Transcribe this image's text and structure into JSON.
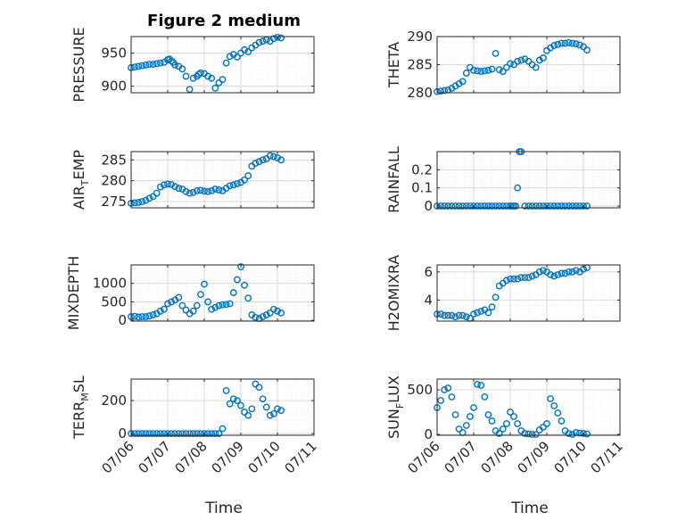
{
  "figure": {
    "title": "Figure 2 medium",
    "xlabel": "Time"
  },
  "colors": {
    "marker": "#0072BD",
    "axis": "#262626",
    "grid": "#d9d9d9",
    "minorgrid": "#ececec"
  },
  "chart_data": [
    {
      "type": "scatter",
      "ylabel": "PRESSURE",
      "ylabel_main": "PRESSURE",
      "ylabel_sub": "",
      "ylim": [
        890,
        975
      ],
      "yticks": [
        900,
        950
      ],
      "xlim": [
        0,
        5
      ],
      "xticks": [
        "07/06",
        "07/07",
        "07/08",
        "07/09",
        "07/10",
        "07/11"
      ],
      "x": [
        0.0,
        0.1,
        0.2,
        0.3,
        0.4,
        0.5,
        0.6,
        0.7,
        0.8,
        0.9,
        1.0,
        1.05,
        1.1,
        1.15,
        1.2,
        1.3,
        1.4,
        1.5,
        1.6,
        1.7,
        1.8,
        1.85,
        1.9,
        2.0,
        2.1,
        2.2,
        2.3,
        2.4,
        2.5,
        2.6,
        2.7,
        2.8,
        2.9,
        3.0,
        3.1,
        3.2,
        3.3,
        3.4,
        3.5,
        3.6,
        3.7,
        3.8,
        3.9,
        4.0,
        4.1
      ],
      "y": [
        928,
        929,
        930,
        931,
        932,
        933,
        933,
        934,
        935,
        936,
        940,
        941,
        938,
        936,
        932,
        930,
        926,
        915,
        895,
        912,
        915,
        918,
        920,
        919,
        915,
        912,
        897,
        905,
        910,
        935,
        945,
        948,
        944,
        950,
        955,
        952,
        958,
        962,
        966,
        968,
        970,
        968,
        972,
        974,
        973
      ]
    },
    {
      "type": "scatter",
      "ylabel": "THETA",
      "ylabel_main": "THETA",
      "ylabel_sub": "",
      "ylim": [
        280,
        290
      ],
      "yticks": [
        280,
        285,
        290
      ],
      "xlim": [
        0,
        5
      ],
      "xticks": [
        "07/06",
        "07/07",
        "07/08",
        "07/09",
        "07/10",
        "07/11"
      ],
      "x": [
        0.0,
        0.1,
        0.2,
        0.3,
        0.4,
        0.5,
        0.6,
        0.7,
        0.8,
        0.9,
        1.0,
        1.1,
        1.2,
        1.3,
        1.4,
        1.5,
        1.6,
        1.7,
        1.8,
        1.9,
        2.0,
        2.1,
        2.2,
        2.3,
        2.4,
        2.5,
        2.6,
        2.7,
        2.8,
        2.9,
        3.0,
        3.1,
        3.2,
        3.3,
        3.4,
        3.5,
        3.6,
        3.7,
        3.8,
        3.9,
        4.0,
        4.1
      ],
      "y": [
        280.2,
        280.3,
        280.4,
        280.5,
        280.8,
        281.2,
        281.6,
        282.0,
        283.5,
        284.5,
        284.0,
        283.9,
        283.8,
        283.9,
        284.0,
        284.2,
        287.0,
        284.1,
        283.8,
        284.5,
        285.2,
        285.0,
        285.6,
        285.8,
        286.0,
        285.6,
        285.0,
        284.5,
        285.8,
        286.2,
        287.5,
        288.0,
        288.4,
        288.6,
        288.8,
        288.8,
        288.9,
        288.8,
        288.7,
        288.5,
        288.2,
        287.6
      ]
    },
    {
      "type": "scatter",
      "ylabel": "AIR_TEMP",
      "ylabel_main": "AIR",
      "ylabel_sub": "T",
      "ylabel_rest": "EMP",
      "ylim": [
        273.5,
        287
      ],
      "yticks": [
        275,
        280,
        285
      ],
      "xlim": [
        0,
        5
      ],
      "xticks": [
        "07/06",
        "07/07",
        "07/08",
        "07/09",
        "07/10",
        "07/11"
      ],
      "x": [
        0.0,
        0.1,
        0.2,
        0.3,
        0.4,
        0.5,
        0.6,
        0.7,
        0.8,
        0.9,
        1.0,
        1.1,
        1.2,
        1.3,
        1.4,
        1.5,
        1.6,
        1.7,
        1.8,
        1.9,
        2.0,
        2.1,
        2.2,
        2.3,
        2.4,
        2.5,
        2.6,
        2.7,
        2.8,
        2.9,
        3.0,
        3.1,
        3.2,
        3.3,
        3.4,
        3.5,
        3.6,
        3.7,
        3.8,
        3.9,
        4.0,
        4.1
      ],
      "y": [
        274.6,
        274.7,
        274.8,
        275.0,
        275.3,
        275.8,
        276.2,
        277.0,
        278.5,
        279.0,
        279.2,
        279.1,
        278.6,
        278.2,
        278.0,
        277.4,
        277.0,
        277.2,
        277.6,
        277.7,
        277.5,
        277.4,
        277.6,
        278.0,
        277.8,
        277.6,
        278.2,
        278.8,
        279.0,
        279.3,
        279.6,
        280.2,
        281.2,
        283.5,
        284.2,
        284.6,
        285.0,
        285.3,
        286.0,
        285.8,
        285.5,
        285.0
      ]
    },
    {
      "type": "scatter",
      "ylabel": "RAINFALL",
      "ylabel_main": "RAINFALL",
      "ylabel_sub": "",
      "ylim": [
        -0.01,
        0.3
      ],
      "yticks": [
        0,
        0.1,
        0.2
      ],
      "xlim": [
        0,
        5
      ],
      "xticks": [
        "07/06",
        "07/07",
        "07/08",
        "07/09",
        "07/10",
        "07/11"
      ],
      "x": [
        0.0,
        0.1,
        0.2,
        0.3,
        0.4,
        0.5,
        0.6,
        0.7,
        0.8,
        0.9,
        1.0,
        1.1,
        1.2,
        1.3,
        1.4,
        1.5,
        1.6,
        1.7,
        1.8,
        1.9,
        2.0,
        2.05,
        2.1,
        2.15,
        2.2,
        2.25,
        2.3,
        2.4,
        2.5,
        2.6,
        2.7,
        2.8,
        2.9,
        3.0,
        3.1,
        3.2,
        3.3,
        3.4,
        3.5,
        3.6,
        3.7,
        3.8,
        3.9,
        4.0,
        4.1
      ],
      "y": [
        0,
        0,
        0,
        0,
        0,
        0,
        0,
        0,
        0,
        0,
        0,
        0,
        0,
        0,
        0,
        0,
        0,
        0,
        0,
        0,
        0,
        0,
        0,
        0,
        0.1,
        0.3,
        0.3,
        0,
        0,
        0,
        0,
        0,
        0,
        0,
        0,
        0,
        0,
        0,
        0,
        0,
        0,
        0,
        0,
        0,
        0
      ]
    },
    {
      "type": "scatter",
      "ylabel": "MIXDEPTH",
      "ylabel_main": "MIXDEPTH",
      "ylabel_sub": "",
      "ylim": [
        -20,
        1500
      ],
      "yticks": [
        0,
        500,
        1000
      ],
      "xlim": [
        0,
        5
      ],
      "xticks": [
        "07/06",
        "07/07",
        "07/08",
        "07/09",
        "07/10",
        "07/11"
      ],
      "x": [
        0.0,
        0.1,
        0.2,
        0.3,
        0.4,
        0.5,
        0.6,
        0.7,
        0.8,
        0.9,
        1.0,
        1.1,
        1.2,
        1.3,
        1.4,
        1.5,
        1.6,
        1.7,
        1.8,
        1.9,
        2.0,
        2.1,
        2.2,
        2.3,
        2.4,
        2.5,
        2.6,
        2.7,
        2.8,
        2.9,
        3.0,
        3.1,
        3.2,
        3.3,
        3.4,
        3.5,
        3.6,
        3.7,
        3.8,
        3.9,
        4.0,
        4.1
      ],
      "y": [
        100,
        110,
        90,
        100,
        100,
        120,
        150,
        180,
        250,
        300,
        450,
        500,
        550,
        620,
        400,
        280,
        180,
        250,
        400,
        700,
        980,
        500,
        300,
        350,
        400,
        420,
        430,
        450,
        750,
        1100,
        1450,
        950,
        600,
        150,
        80,
        50,
        100,
        150,
        200,
        300,
        250,
        200
      ]
    },
    {
      "type": "scatter",
      "ylabel": "H2OMIXRA",
      "ylabel_main": "H2OMIXRA",
      "ylabel_sub": "",
      "ylim": [
        2.5,
        6.5
      ],
      "yticks": [
        4,
        6
      ],
      "xlim": [
        0,
        5
      ],
      "xticks": [
        "07/06",
        "07/07",
        "07/08",
        "07/09",
        "07/10",
        "07/11"
      ],
      "x": [
        0.0,
        0.1,
        0.2,
        0.3,
        0.4,
        0.5,
        0.6,
        0.7,
        0.8,
        0.9,
        1.0,
        1.1,
        1.2,
        1.3,
        1.4,
        1.5,
        1.6,
        1.7,
        1.8,
        1.9,
        2.0,
        2.1,
        2.2,
        2.3,
        2.4,
        2.5,
        2.6,
        2.7,
        2.8,
        2.9,
        3.0,
        3.1,
        3.2,
        3.3,
        3.4,
        3.5,
        3.6,
        3.7,
        3.8,
        3.9,
        4.0,
        4.1
      ],
      "y": [
        3.0,
        3.0,
        2.9,
        2.9,
        2.9,
        2.8,
        2.9,
        2.9,
        2.8,
        2.7,
        3.0,
        3.1,
        3.2,
        3.3,
        3.1,
        3.5,
        4.2,
        5.0,
        5.2,
        5.4,
        5.5,
        5.5,
        5.5,
        5.6,
        5.6,
        5.6,
        5.7,
        5.8,
        6.0,
        6.1,
        6.0,
        5.8,
        5.7,
        5.8,
        5.9,
        5.9,
        6.0,
        6.0,
        6.1,
        6.0,
        6.2,
        6.3
      ]
    },
    {
      "type": "scatter",
      "ylabel": "TERR_MSL",
      "ylabel_main": "TERR",
      "ylabel_sub": "M",
      "ylabel_rest": "SL",
      "ylim": [
        -10,
        330
      ],
      "yticks": [
        0,
        200
      ],
      "xlim": [
        0,
        5
      ],
      "xticks": [
        "07/06",
        "07/07",
        "07/08",
        "07/09",
        "07/10",
        "07/11"
      ],
      "x": [
        0.0,
        0.1,
        0.2,
        0.3,
        0.4,
        0.5,
        0.6,
        0.7,
        0.8,
        0.9,
        1.0,
        1.1,
        1.2,
        1.3,
        1.4,
        1.5,
        1.6,
        1.7,
        1.8,
        1.9,
        2.0,
        2.1,
        2.2,
        2.3,
        2.4,
        2.5,
        2.6,
        2.7,
        2.8,
        2.9,
        3.0,
        3.1,
        3.2,
        3.3,
        3.4,
        3.5,
        3.6,
        3.7,
        3.8,
        3.9,
        4.0,
        4.1
      ],
      "y": [
        0,
        0,
        0,
        0,
        0,
        0,
        0,
        0,
        0,
        0,
        0,
        0,
        0,
        0,
        0,
        0,
        0,
        0,
        0,
        0,
        0,
        0,
        0,
        0,
        0,
        30,
        260,
        180,
        210,
        200,
        170,
        130,
        110,
        150,
        300,
        280,
        210,
        160,
        110,
        120,
        150,
        140
      ]
    },
    {
      "type": "scatter",
      "ylabel": "SUN_FLUX",
      "ylabel_main": "SUN",
      "ylabel_sub": "F",
      "ylabel_rest": "LUX",
      "ylim": [
        -10,
        620
      ],
      "yticks": [
        0,
        500
      ],
      "xlim": [
        0,
        5
      ],
      "xticks": [
        "07/06",
        "07/07",
        "07/08",
        "07/09",
        "07/10",
        "07/11"
      ],
      "x": [
        0.0,
        0.1,
        0.2,
        0.3,
        0.4,
        0.5,
        0.6,
        0.7,
        0.8,
        0.9,
        1.0,
        1.1,
        1.2,
        1.3,
        1.4,
        1.5,
        1.6,
        1.7,
        1.8,
        1.9,
        2.0,
        2.1,
        2.2,
        2.3,
        2.4,
        2.5,
        2.6,
        2.7,
        2.8,
        2.9,
        3.0,
        3.1,
        3.2,
        3.3,
        3.4,
        3.5,
        3.6,
        3.7,
        3.8,
        3.9,
        4.0,
        4.1
      ],
      "y": [
        300,
        380,
        500,
        520,
        420,
        220,
        60,
        20,
        100,
        200,
        300,
        560,
        550,
        420,
        220,
        150,
        40,
        10,
        60,
        120,
        250,
        200,
        120,
        40,
        10,
        5,
        0,
        0,
        50,
        80,
        120,
        400,
        320,
        240,
        150,
        40,
        10,
        0,
        20,
        15,
        10,
        5
      ]
    }
  ]
}
